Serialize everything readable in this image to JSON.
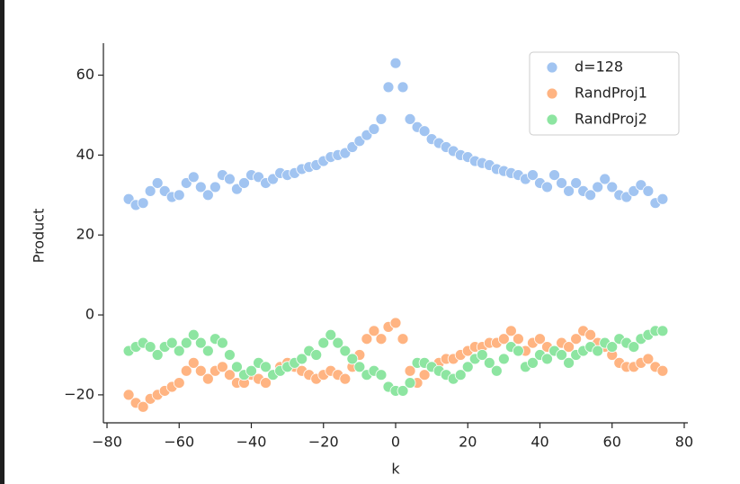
{
  "chart_data": {
    "type": "scatter",
    "xlabel": "k",
    "ylabel": "Product",
    "x": [
      -74,
      -72,
      -70,
      -68,
      -66,
      -64,
      -62,
      -60,
      -58,
      -56,
      -54,
      -52,
      -50,
      -48,
      -46,
      -44,
      -42,
      -40,
      -38,
      -36,
      -34,
      -32,
      -30,
      -28,
      -26,
      -24,
      -22,
      -20,
      -18,
      -16,
      -14,
      -12,
      -10,
      -8,
      -6,
      -4,
      -2,
      0,
      2,
      4,
      6,
      8,
      10,
      12,
      14,
      16,
      18,
      20,
      22,
      24,
      26,
      28,
      30,
      32,
      34,
      36,
      38,
      40,
      42,
      44,
      46,
      48,
      50,
      52,
      54,
      56,
      58,
      60,
      62,
      64,
      66,
      68,
      70,
      72,
      74
    ],
    "series": [
      {
        "name": "d=128",
        "color": "#a1c4f1",
        "values": [
          29,
          27.5,
          28,
          31,
          33,
          31,
          29.5,
          30,
          33,
          34.5,
          32,
          30,
          32,
          35,
          34,
          31.5,
          33,
          35,
          34.5,
          33,
          34,
          35.5,
          35,
          35.5,
          36.5,
          37,
          37.5,
          38.5,
          39.5,
          40,
          40.5,
          42,
          43.5,
          45,
          46.5,
          49,
          57,
          63,
          57,
          49,
          47,
          46,
          44,
          43,
          42,
          41,
          40,
          39.5,
          38.5,
          38,
          37.5,
          36.5,
          36,
          35.5,
          35,
          34,
          35,
          33,
          32,
          35,
          33,
          31,
          33,
          31,
          30,
          32,
          34,
          32,
          30,
          29.5,
          31,
          32.5,
          31,
          28,
          29
        ]
      },
      {
        "name": "RandProj1",
        "color": "#ffb482",
        "values": [
          -20,
          -22,
          -23,
          -21,
          -20,
          -19,
          -18,
          -17,
          -14,
          -12,
          -14,
          -16,
          -14,
          -13,
          -15,
          -17,
          -17,
          -15,
          -16,
          -17,
          -15,
          -13,
          -12,
          -13,
          -14,
          -15,
          -16,
          -15,
          -14,
          -15,
          -16,
          -13,
          -10,
          -6,
          -4,
          -6,
          -3,
          -2,
          -6,
          -14,
          -17,
          -15,
          -13,
          -12,
          -11,
          -11,
          -10,
          -9,
          -8,
          -8,
          -7,
          -7,
          -6,
          -4,
          -6,
          -9,
          -7,
          -6,
          -8,
          -9,
          -7,
          -8,
          -6,
          -4,
          -5,
          -7,
          -8,
          -10,
          -12,
          -13,
          -13,
          -12,
          -11,
          -13,
          -14
        ]
      },
      {
        "name": "RandProj2",
        "color": "#8de5a1",
        "values": [
          -9,
          -8,
          -7,
          -8,
          -10,
          -8,
          -7,
          -9,
          -7,
          -5,
          -7,
          -9,
          -6,
          -7,
          -10,
          -13,
          -15,
          -14,
          -12,
          -13,
          -15,
          -14,
          -13,
          -12,
          -11,
          -9,
          -10,
          -7,
          -5,
          -7,
          -9,
          -11,
          -13,
          -15,
          -14,
          -15,
          -18,
          -19,
          -19,
          -17,
          -12,
          -12,
          -13,
          -14,
          -15,
          -16,
          -15,
          -13,
          -11,
          -10,
          -12,
          -14,
          -11,
          -8,
          -9,
          -13,
          -12,
          -10,
          -11,
          -9,
          -10,
          -12,
          -10,
          -9,
          -8,
          -9,
          -7,
          -8,
          -6,
          -7,
          -8,
          -6,
          -5,
          -4,
          -4
        ]
      }
    ],
    "xlim": [
      -81,
      81
    ],
    "ylim": [
      -27,
      68
    ],
    "xticks": [
      {
        "value": -80,
        "label": "−80"
      },
      {
        "value": -60,
        "label": "−60"
      },
      {
        "value": -40,
        "label": "−40"
      },
      {
        "value": -20,
        "label": "−20"
      },
      0,
      20,
      40,
      60,
      80
    ],
    "yticks": [
      {
        "value": -20,
        "label": "−20"
      },
      0,
      20,
      40,
      60
    ],
    "legend": "upper right"
  }
}
